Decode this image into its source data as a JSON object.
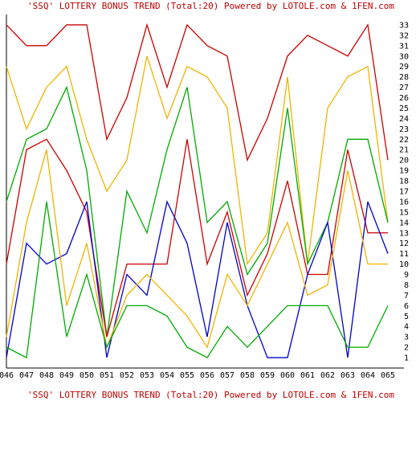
{
  "chart_data": {
    "type": "line",
    "title": "'SSQ' LOTTERY BONUS TREND (Total:20)  Powered by LOTOLE.com & 1FEN.com",
    "footer": "'SSQ' LOTTERY BONUS TREND (Total:20)  Powered by LOTOLE.com & 1FEN.com",
    "categories": [
      "046",
      "047",
      "048",
      "049",
      "050",
      "051",
      "052",
      "053",
      "054",
      "055",
      "056",
      "057",
      "058",
      "059",
      "060",
      "061",
      "062",
      "063",
      "064",
      "065"
    ],
    "y_ticks": [
      1,
      2,
      3,
      4,
      5,
      6,
      7,
      8,
      9,
      10,
      11,
      12,
      13,
      14,
      15,
      16,
      17,
      18,
      19,
      20,
      21,
      22,
      23,
      24,
      25,
      26,
      27,
      28,
      29,
      30,
      31,
      32,
      33
    ],
    "ylim": [
      0,
      34
    ],
    "grid": false,
    "colors": {
      "red": "#cc0000",
      "yellow": "#f0b400",
      "green": "#00aa00",
      "blue": "#0000cc",
      "axis": "#000000",
      "title": "#c00000"
    },
    "series": [
      {
        "color": "#cc0000",
        "values": [
          33,
          31,
          31,
          33,
          33,
          22,
          26,
          33,
          27,
          33,
          31,
          30,
          20,
          24,
          30,
          32,
          31,
          30,
          33,
          20
        ]
      },
      {
        "color": "#f0b400",
        "values": [
          29,
          23,
          27,
          29,
          22,
          17,
          20,
          30,
          24,
          29,
          28,
          25,
          10,
          13,
          28,
          10,
          25,
          28,
          29,
          14
        ]
      },
      {
        "color": "#00aa00",
        "values": [
          16,
          22,
          23,
          27,
          19,
          3,
          17,
          13,
          21,
          27,
          14,
          16,
          9,
          12,
          25,
          10,
          14,
          22,
          22,
          14
        ]
      },
      {
        "color": "#cc0000",
        "values": [
          10,
          21,
          22,
          19,
          15,
          3,
          10,
          10,
          10,
          22,
          10,
          15,
          7,
          11,
          18,
          9,
          9,
          21,
          13,
          13
        ]
      },
      {
        "color": "#0000cc",
        "values": [
          1,
          12,
          10,
          11,
          16,
          1,
          9,
          7,
          16,
          12,
          3,
          14,
          6,
          1,
          1,
          9,
          14,
          1,
          16,
          11
        ]
      },
      {
        "color": "#f0b400",
        "values": [
          3,
          14,
          21,
          6,
          12,
          2,
          7,
          9,
          7,
          5,
          2,
          9,
          6,
          10,
          14,
          7,
          8,
          19,
          10,
          10
        ]
      },
      {
        "color": "#00aa00",
        "values": [
          2,
          1,
          16,
          3,
          9,
          2,
          6,
          6,
          5,
          2,
          1,
          4,
          2,
          4,
          6,
          6,
          6,
          2,
          2,
          6
        ]
      }
    ]
  }
}
